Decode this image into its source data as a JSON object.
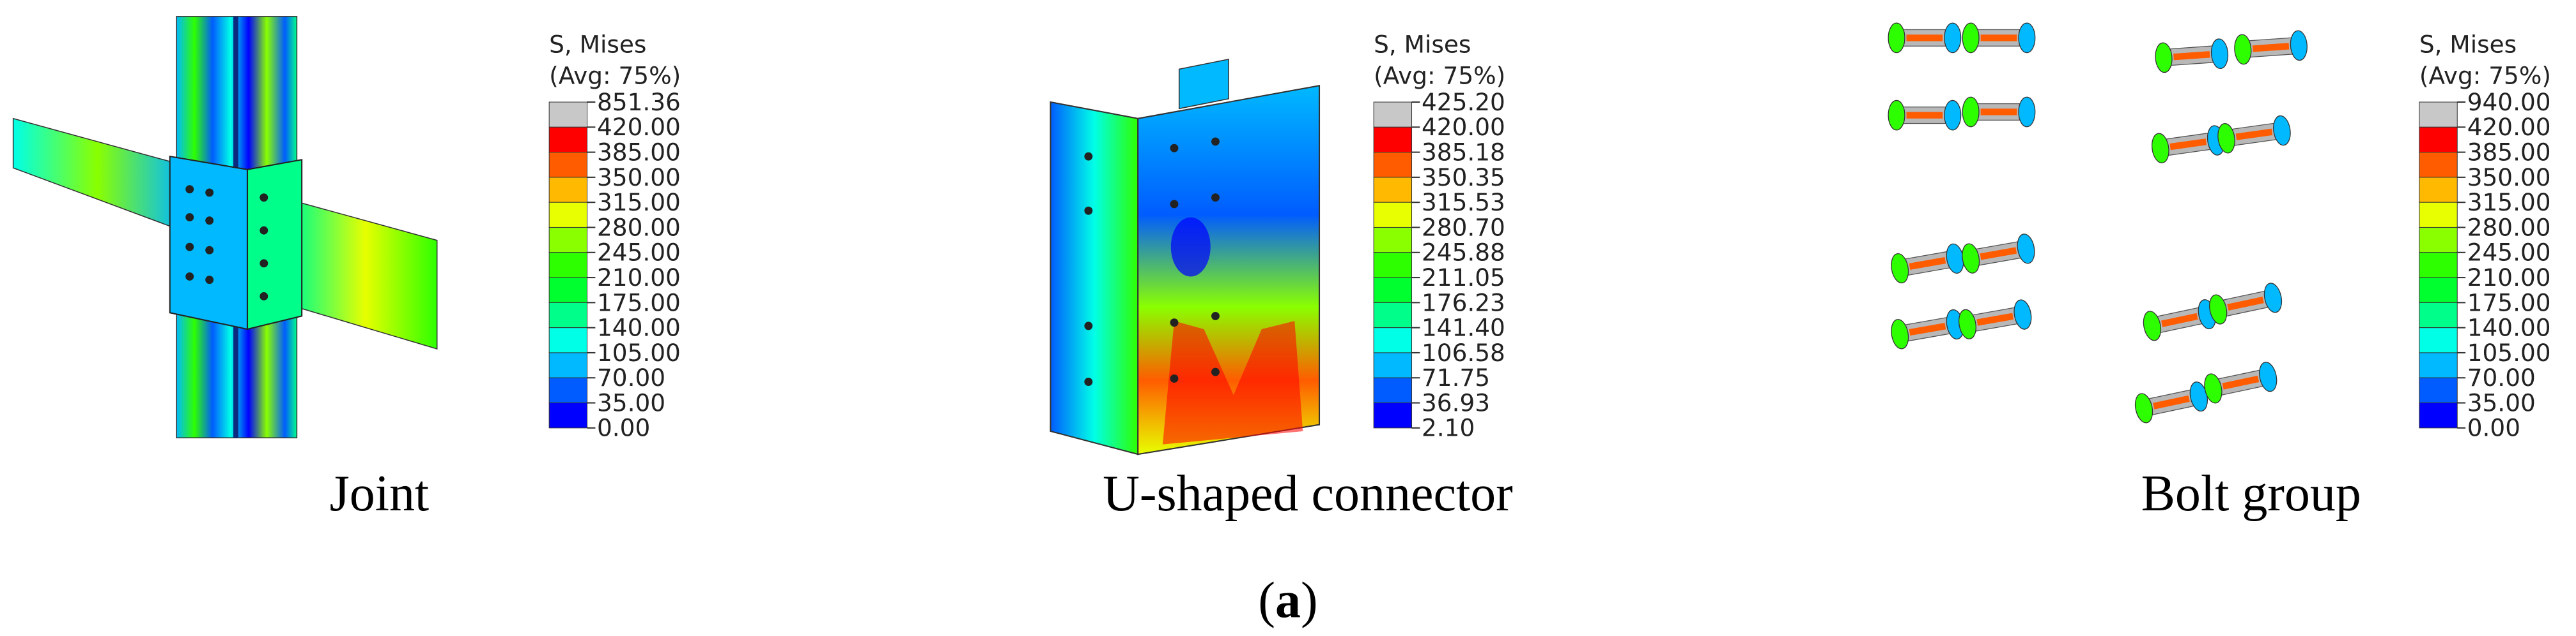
{
  "panels": [
    {
      "caption": "Joint",
      "legend": {
        "title": "S, Mises",
        "subtitle": "(Avg: 75%)",
        "labels": [
          "851.36",
          "420.00",
          "385.00",
          "350.00",
          "315.00",
          "280.00",
          "245.00",
          "210.00",
          "175.00",
          "140.00",
          "105.00",
          "70.00",
          "35.00",
          "0.00"
        ]
      }
    },
    {
      "caption": "U-shaped connector",
      "legend": {
        "title": "S, Mises",
        "subtitle": "(Avg: 75%)",
        "labels": [
          "425.20",
          "420.00",
          "385.18",
          "350.35",
          "315.53",
          "280.70",
          "245.88",
          "211.05",
          "176.23",
          "141.40",
          "106.58",
          "71.75",
          "36.93",
          "2.10"
        ]
      }
    },
    {
      "caption": "Bolt group",
      "legend": {
        "title": "S, Mises",
        "subtitle": "(Avg: 75%)",
        "labels": [
          "940.00",
          "420.00",
          "385.00",
          "350.00",
          "315.00",
          "280.00",
          "245.00",
          "210.00",
          "175.00",
          "140.00",
          "105.00",
          "70.00",
          "35.00",
          "0.00"
        ]
      }
    }
  ],
  "legend_colors": [
    "#c8c8c8",
    "#ff0000",
    "#ff5c00",
    "#ffb900",
    "#e7ff00",
    "#8aff00",
    "#2eff00",
    "#00ff2e",
    "#00ff8a",
    "#00ffe7",
    "#00b9ff",
    "#005cff",
    "#0000ff"
  ],
  "figure_label": {
    "before": "(",
    "letter": "a",
    "after": ")"
  }
}
